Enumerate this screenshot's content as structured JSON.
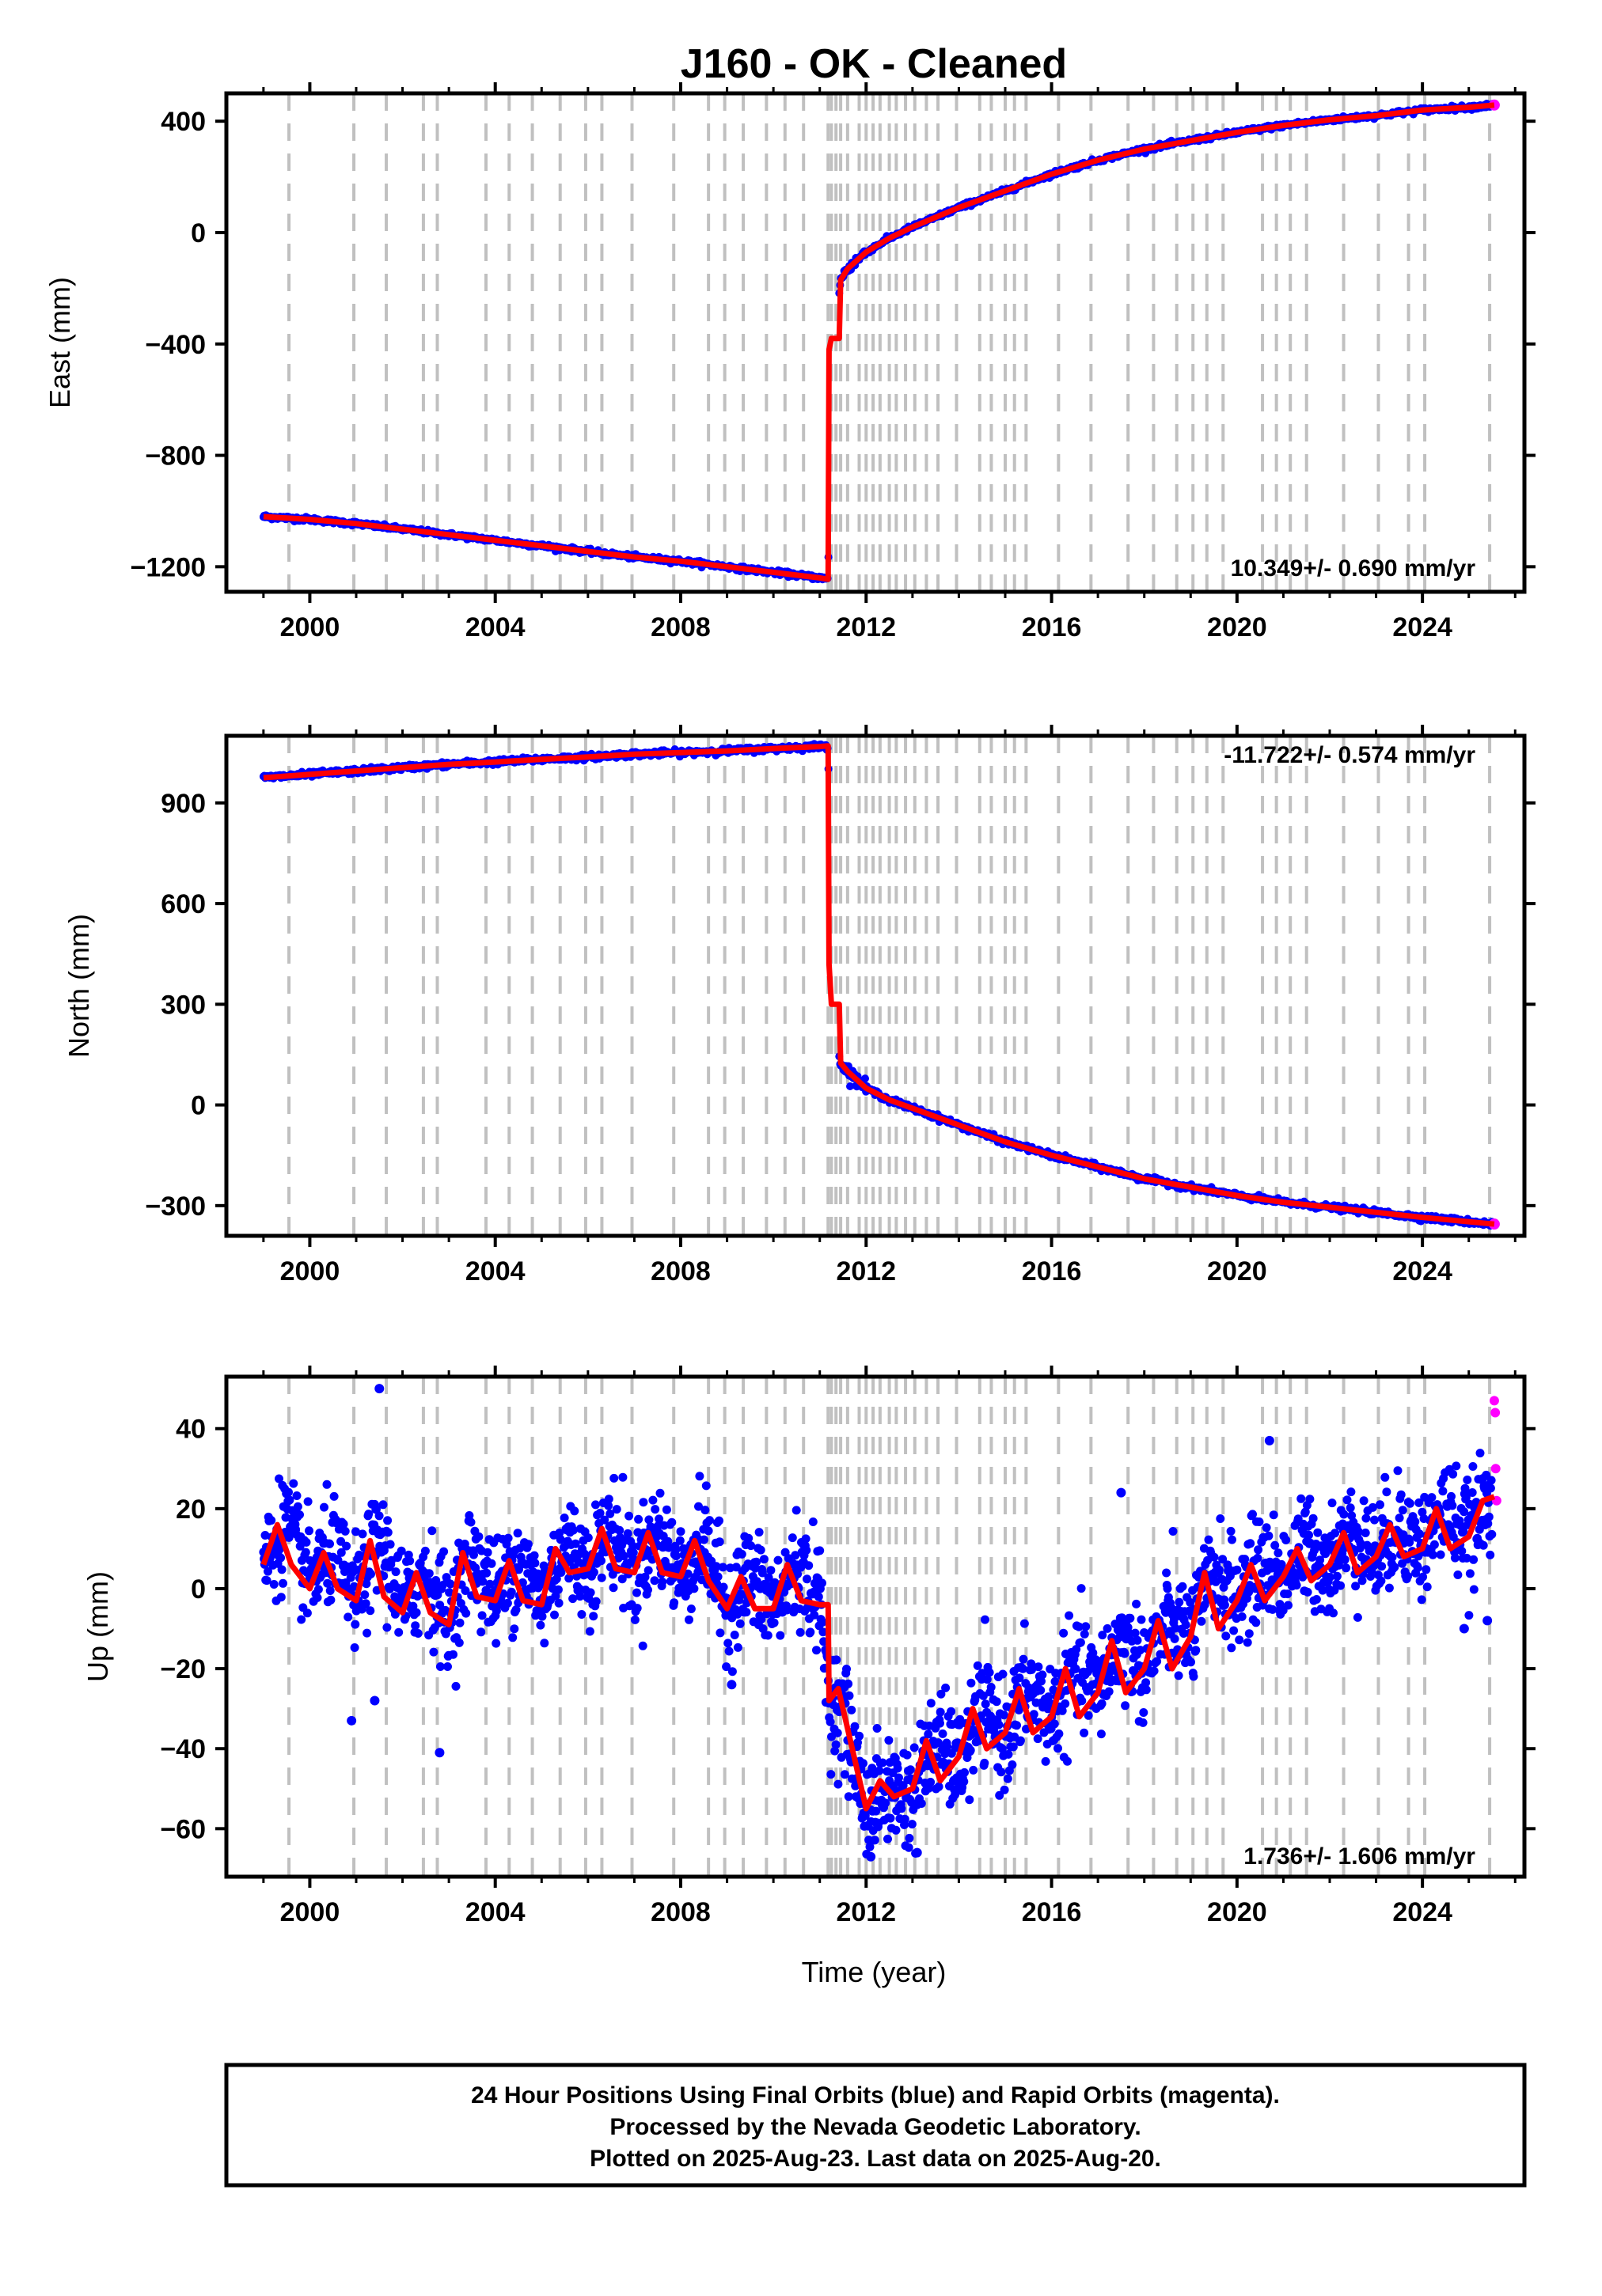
{
  "chart_data": [
    {
      "type": "scatter",
      "panel": "east",
      "title": "J160  - OK - Cleaned",
      "ylabel": "East (mm)",
      "xlabel": "",
      "xlim": [
        1998.2,
        2026.2
      ],
      "ylim": [
        -1290,
        500
      ],
      "yticks": [
        400,
        0,
        -400,
        -800,
        -1200
      ],
      "xticks": [
        2000,
        2004,
        2008,
        2012,
        2016,
        2020,
        2024
      ],
      "x_tick_labels": [
        "2000",
        "2004",
        "2008",
        "2012",
        "2016",
        "2020",
        "2024"
      ],
      "rate_text": "10.349+/- 0.690 mm/yr",
      "grid": "vertical dashed gray lines at equipment/event epochs",
      "series": [
        {
          "name": "Final Orbits",
          "color": "#0000ff",
          "x": [
            1999.0,
            2000.0,
            2001.0,
            2002.0,
            2003.0,
            2004.0,
            2005.0,
            2006.0,
            2007.0,
            2008.0,
            2009.0,
            2010.0,
            2011.0,
            2011.18,
            2011.25,
            2011.45,
            2011.6,
            2012.0,
            2012.5,
            2013.0,
            2014.0,
            2015.0,
            2016.0,
            2017.0,
            2018.0,
            2019.0,
            2020.0,
            2021.0,
            2022.0,
            2023.0,
            2024.0,
            2025.0,
            2025.55
          ],
          "y": [
            -1020,
            -1030,
            -1045,
            -1065,
            -1085,
            -1105,
            -1125,
            -1145,
            -1165,
            -1180,
            -1200,
            -1220,
            -1240,
            -1245,
            -380,
            -170,
            -130,
            -70,
            -20,
            20,
            90,
            150,
            210,
            260,
            300,
            330,
            360,
            385,
            405,
            420,
            440,
            450,
            458
          ]
        },
        {
          "name": "Model",
          "color": "#ff0000",
          "x": [
            1999.0,
            2000.0,
            2001.0,
            2002.0,
            2003.0,
            2004.0,
            2005.0,
            2006.0,
            2007.0,
            2008.0,
            2009.0,
            2010.0,
            2011.0,
            2011.18,
            2011.2,
            2011.25,
            2011.42,
            2011.45,
            2011.6,
            2012.0,
            2012.5,
            2013.0,
            2014.0,
            2015.0,
            2016.0,
            2017.0,
            2018.0,
            2019.0,
            2020.0,
            2021.0,
            2022.0,
            2023.0,
            2024.0,
            2025.0,
            2025.55
          ],
          "y": [
            -1020,
            -1030,
            -1045,
            -1065,
            -1085,
            -1105,
            -1125,
            -1145,
            -1165,
            -1180,
            -1200,
            -1220,
            -1240,
            -1245,
            -420,
            -380,
            -380,
            -170,
            -130,
            -70,
            -20,
            20,
            90,
            150,
            210,
            260,
            300,
            330,
            360,
            385,
            405,
            420,
            440,
            450,
            458
          ]
        }
      ]
    },
    {
      "type": "scatter",
      "panel": "north",
      "ylabel": "North (mm)",
      "xlabel": "",
      "xlim": [
        1998.2,
        2026.2
      ],
      "ylim": [
        -390,
        1100
      ],
      "yticks": [
        900,
        600,
        300,
        0,
        -300
      ],
      "xticks": [
        2000,
        2004,
        2008,
        2012,
        2016,
        2020,
        2024
      ],
      "x_tick_labels": [
        "2000",
        "2004",
        "2008",
        "2012",
        "2016",
        "2020",
        "2024"
      ],
      "rate_text": "-11.722+/- 0.574 mm/yr",
      "series": [
        {
          "name": "Final Orbits",
          "color": "#0000ff",
          "x": [
            1999.0,
            2000.0,
            2001.0,
            2002.0,
            2003.0,
            2004.0,
            2005.0,
            2006.0,
            2007.0,
            2008.0,
            2009.0,
            2010.0,
            2011.0,
            2011.18,
            2011.25,
            2011.45,
            2011.6,
            2012.0,
            2012.5,
            2013.0,
            2014.0,
            2015.0,
            2016.0,
            2017.0,
            2018.0,
            2019.0,
            2020.0,
            2021.0,
            2022.0,
            2023.0,
            2024.0,
            2025.0,
            2025.55
          ],
          "y": [
            975,
            985,
            995,
            1005,
            1015,
            1022,
            1030,
            1037,
            1045,
            1050,
            1055,
            1062,
            1068,
            1070,
            300,
            125,
            100,
            50,
            15,
            -10,
            -60,
            -110,
            -150,
            -185,
            -220,
            -245,
            -270,
            -290,
            -305,
            -320,
            -335,
            -348,
            -355
          ]
        },
        {
          "name": "Model",
          "color": "#ff0000",
          "x": [
            1999.0,
            2000.0,
            2001.0,
            2002.0,
            2003.0,
            2004.0,
            2005.0,
            2006.0,
            2007.0,
            2008.0,
            2009.0,
            2010.0,
            2011.0,
            2011.18,
            2011.2,
            2011.25,
            2011.42,
            2011.45,
            2011.6,
            2012.0,
            2012.5,
            2013.0,
            2014.0,
            2015.0,
            2016.0,
            2017.0,
            2018.0,
            2019.0,
            2020.0,
            2021.0,
            2022.0,
            2023.0,
            2024.0,
            2025.0,
            2025.55
          ],
          "y": [
            975,
            985,
            995,
            1005,
            1015,
            1022,
            1030,
            1037,
            1045,
            1050,
            1055,
            1062,
            1068,
            1070,
            420,
            300,
            300,
            125,
            100,
            50,
            15,
            -10,
            -60,
            -110,
            -150,
            -185,
            -220,
            -245,
            -270,
            -290,
            -305,
            -320,
            -335,
            -348,
            -355
          ]
        }
      ]
    },
    {
      "type": "scatter",
      "panel": "up",
      "ylabel": "Up (mm)",
      "xlabel": "Time (year)",
      "xlim": [
        1998.2,
        2026.2
      ],
      "ylim": [
        -72,
        53
      ],
      "yticks": [
        40,
        20,
        0,
        -20,
        -40,
        -60
      ],
      "xticks": [
        2000,
        2004,
        2008,
        2012,
        2016,
        2020,
        2024
      ],
      "x_tick_labels": [
        "2000",
        "2004",
        "2008",
        "2012",
        "2016",
        "2020",
        "2024"
      ],
      "rate_text": "1.736+/- 1.606 mm/yr",
      "series": [
        {
          "name": "Final Orbits",
          "color": "#0000ff",
          "x": [
            1999.0,
            1999.5,
            2000.0,
            2000.5,
            2001.0,
            2001.5,
            2002.0,
            2002.5,
            2003.0,
            2003.5,
            2004.0,
            2004.5,
            2005.0,
            2005.5,
            2006.0,
            2006.5,
            2007.0,
            2007.5,
            2008.0,
            2008.5,
            2009.0,
            2009.5,
            2010.0,
            2010.5,
            2011.0,
            2011.2,
            2011.5,
            2012.0,
            2012.5,
            2013.0,
            2013.5,
            2014.0,
            2014.5,
            2015.0,
            2015.5,
            2016.0,
            2016.5,
            2017.0,
            2017.5,
            2018.0,
            2018.5,
            2019.0,
            2019.5,
            2020.0,
            2020.5,
            2021.0,
            2021.5,
            2022.0,
            2022.5,
            2023.0,
            2023.5,
            2024.0,
            2024.5,
            2025.0,
            2025.5
          ],
          "y": [
            6,
            17,
            2,
            10,
            -3,
            13,
            -5,
            4,
            -8,
            9,
            -2,
            7,
            -3,
            11,
            5,
            15,
            4,
            14,
            3,
            12,
            -5,
            3,
            -5,
            6,
            -3,
            -28,
            -30,
            -55,
            -50,
            -52,
            -38,
            -45,
            -30,
            -37,
            -25,
            -32,
            -20,
            -25,
            -13,
            -20,
            -8,
            -12,
            4,
            -3,
            6,
            3,
            10,
            6,
            14,
            8,
            16,
            10,
            20,
            13,
            23
          ]
        },
        {
          "name": "Rapid Orbits",
          "color": "#ff00ff",
          "x": [
            2025.55,
            2025.57,
            2025.58,
            2025.6
          ],
          "y": [
            47,
            44,
            30,
            22
          ]
        },
        {
          "name": "Model",
          "color": "#ff0000",
          "x": [
            1999.0,
            1999.3,
            1999.6,
            2000.0,
            2000.3,
            2000.6,
            2001.0,
            2001.3,
            2001.6,
            2002.0,
            2002.3,
            2002.6,
            2003.0,
            2003.3,
            2003.6,
            2004.0,
            2004.3,
            2004.6,
            2005.0,
            2005.3,
            2005.6,
            2006.0,
            2006.3,
            2006.6,
            2007.0,
            2007.3,
            2007.6,
            2008.0,
            2008.3,
            2008.6,
            2009.0,
            2009.3,
            2009.6,
            2010.0,
            2010.3,
            2010.6,
            2011.0,
            2011.18,
            2011.2,
            2011.4,
            2011.6,
            2012.0,
            2012.3,
            2012.6,
            2013.0,
            2013.3,
            2013.6,
            2014.0,
            2014.3,
            2014.6,
            2015.0,
            2015.3,
            2015.6,
            2016.0,
            2016.3,
            2016.6,
            2017.0,
            2017.3,
            2017.6,
            2018.0,
            2018.3,
            2018.6,
            2019.0,
            2019.3,
            2019.6,
            2020.0,
            2020.3,
            2020.6,
            2021.0,
            2021.3,
            2021.6,
            2022.0,
            2022.3,
            2022.6,
            2023.0,
            2023.3,
            2023.6,
            2024.0,
            2024.3,
            2024.6,
            2025.0,
            2025.3,
            2025.55
          ],
          "y": [
            6,
            16,
            6,
            0,
            9,
            0,
            -3,
            12,
            -2,
            -6,
            4,
            -6,
            -9,
            9,
            -2,
            -3,
            7,
            -3,
            -4,
            10,
            4,
            5,
            15,
            5,
            4,
            14,
            4,
            3,
            12,
            2,
            -5,
            3,
            -5,
            -5,
            6,
            -3,
            -4,
            -4,
            -28,
            -25,
            -35,
            -55,
            -48,
            -52,
            -50,
            -38,
            -48,
            -42,
            -30,
            -40,
            -36,
            -25,
            -36,
            -32,
            -20,
            -32,
            -26,
            -13,
            -26,
            -20,
            -8,
            -20,
            -12,
            4,
            -10,
            -3,
            6,
            -3,
            3,
            10,
            2,
            6,
            14,
            4,
            8,
            16,
            8,
            10,
            20,
            10,
            13,
            22,
            23
          ]
        }
      ]
    }
  ],
  "event_epochs": [
    1999.55,
    2000.95,
    2001.65,
    2002.45,
    2002.75,
    2003.8,
    2004.3,
    2004.8,
    2005.4,
    2005.95,
    2006.3,
    2006.95,
    2007.85,
    2008.6,
    2008.95,
    2009.35,
    2009.85,
    2010.25,
    2010.65,
    2011.18,
    2011.25,
    2011.35,
    2011.45,
    2011.6,
    2011.85,
    2012.0,
    2012.15,
    2012.3,
    2012.5,
    2012.65,
    2012.85,
    2013.05,
    2013.3,
    2013.55,
    2013.95,
    2014.45,
    2014.7,
    2015.0,
    2015.2,
    2015.45,
    2016.15,
    2016.85,
    2017.65,
    2018.2,
    2018.7,
    2019.05,
    2019.35,
    2019.7,
    2020.55,
    2020.85,
    2021.15,
    2021.5,
    2022.3,
    2023.05,
    2023.7,
    2024.05,
    2025.45
  ],
  "footer": {
    "line1": "24 Hour Positions Using Final Orbits (blue) and Rapid Orbits (magenta).",
    "line2": "Processed by the Nevada Geodetic Laboratory.",
    "line3": "Plotted on 2025-Aug-23. Last data on 2025-Aug-20."
  },
  "colors": {
    "final_orbits": "#0000ff",
    "rapid_orbits": "#ff00ff",
    "model": "#ff0000",
    "event_lines": "#c0c0c0"
  }
}
